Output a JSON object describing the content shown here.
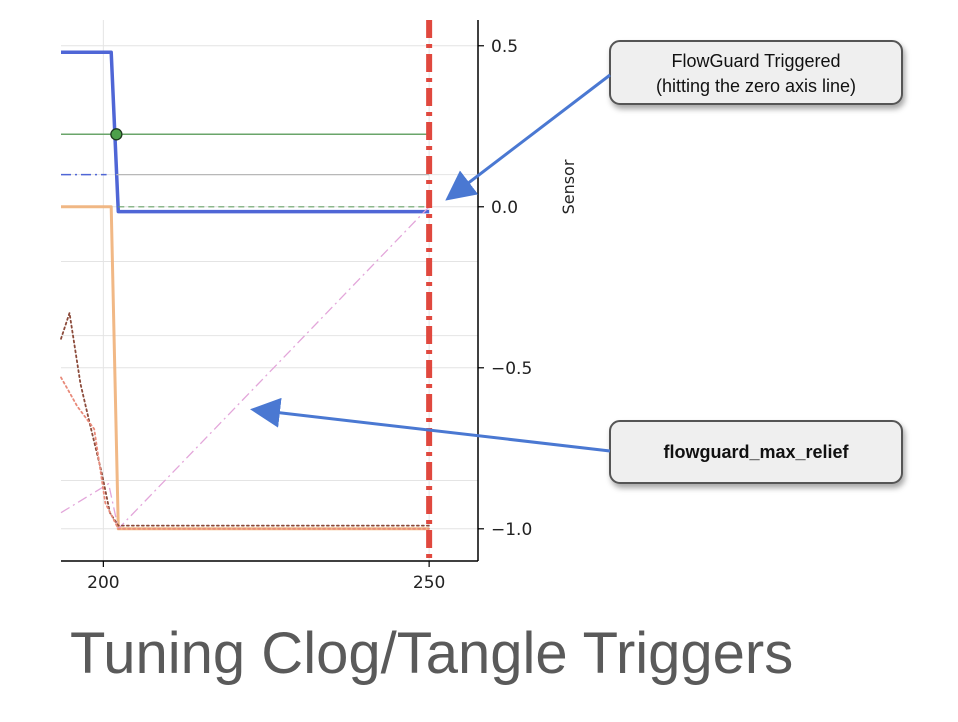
{
  "slide_title": "Tuning Clog/Tangle Triggers",
  "callouts": {
    "triggered": {
      "line1": "FlowGuard Triggered",
      "line2": "(hitting the zero axis line)"
    },
    "max_relief": {
      "label": "flowguard_max_relief"
    }
  },
  "colors": {
    "blue": "#4f66d6",
    "green": "#6aa56a",
    "orange": "#f0b078",
    "red": "#e0483e",
    "pink": "#e3a6da",
    "brown": "#8b4a3a",
    "salmon": "#e88a7a",
    "gray": "#b8b8b8",
    "arrow": "#4a78d2"
  },
  "chart_data": {
    "type": "line",
    "ylabel": "Sensor",
    "xlim": [
      193.5,
      257.5
    ],
    "ylim": [
      -1.1,
      0.58
    ],
    "x_ticks": [
      "200",
      "250"
    ],
    "y_ticks": [
      "0.5",
      "0.0",
      "−0.5",
      "−1.0"
    ],
    "x_tick_values": [
      200,
      250
    ],
    "y_tick_values": [
      0.5,
      0.0,
      -0.5,
      -1.0
    ],
    "y_gridlines": [
      0.5,
      0.0,
      -0.5,
      -1.0,
      0.1,
      -0.17,
      -0.4,
      -0.85
    ],
    "vline": {
      "x": 250,
      "style": "dashdot"
    },
    "marker": {
      "x": 202.0,
      "y": 0.225
    },
    "series": [
      {
        "key": "blue",
        "style": "solid",
        "width": 3.5,
        "points": [
          [
            193.5,
            0.48
          ],
          [
            201.2,
            0.48
          ],
          [
            202.3,
            -0.015
          ],
          [
            250,
            -0.015
          ]
        ]
      },
      {
        "key": "blue",
        "style": "dashdot",
        "width": 1.5,
        "points": [
          [
            193.5,
            0.1
          ],
          [
            200.5,
            0.1
          ]
        ]
      },
      {
        "key": "green",
        "style": "solid",
        "width": 1.5,
        "points": [
          [
            193.5,
            0.225
          ],
          [
            250,
            0.225
          ]
        ]
      },
      {
        "key": "green",
        "style": "dashed",
        "width": 1.2,
        "points": [
          [
            202.3,
            0.0
          ],
          [
            250,
            0.0
          ]
        ]
      },
      {
        "key": "gray",
        "style": "solid",
        "width": 1.2,
        "points": [
          [
            202.0,
            0.1
          ],
          [
            250,
            0.1
          ]
        ]
      },
      {
        "key": "orange",
        "style": "solid",
        "width": 3.0,
        "points": [
          [
            193.5,
            0.0
          ],
          [
            201.2,
            0.0
          ],
          [
            202.3,
            -1.0
          ],
          [
            250,
            -1.0
          ]
        ]
      },
      {
        "key": "pink",
        "style": "dashdot",
        "width": 1.3,
        "points": [
          [
            193.5,
            -0.95
          ],
          [
            200.8,
            -0.86
          ],
          [
            202.3,
            -1.0
          ],
          [
            250,
            0.0
          ]
        ]
      },
      {
        "key": "brown",
        "style": "dotted",
        "width": 1.8,
        "points": [
          [
            193.5,
            -0.41
          ],
          [
            194.8,
            -0.33
          ],
          [
            196.5,
            -0.55
          ],
          [
            198.0,
            -0.68
          ],
          [
            199.8,
            -0.83
          ],
          [
            201.0,
            -0.95
          ],
          [
            202.3,
            -0.99
          ],
          [
            250,
            -0.99
          ]
        ]
      },
      {
        "key": "salmon",
        "style": "dotted",
        "width": 1.8,
        "points": [
          [
            193.5,
            -0.53
          ],
          [
            196.0,
            -0.62
          ],
          [
            198.6,
            -0.69
          ],
          [
            200.3,
            -0.92
          ],
          [
            202.3,
            -1.0
          ],
          [
            250,
            -1.0
          ]
        ]
      }
    ]
  }
}
